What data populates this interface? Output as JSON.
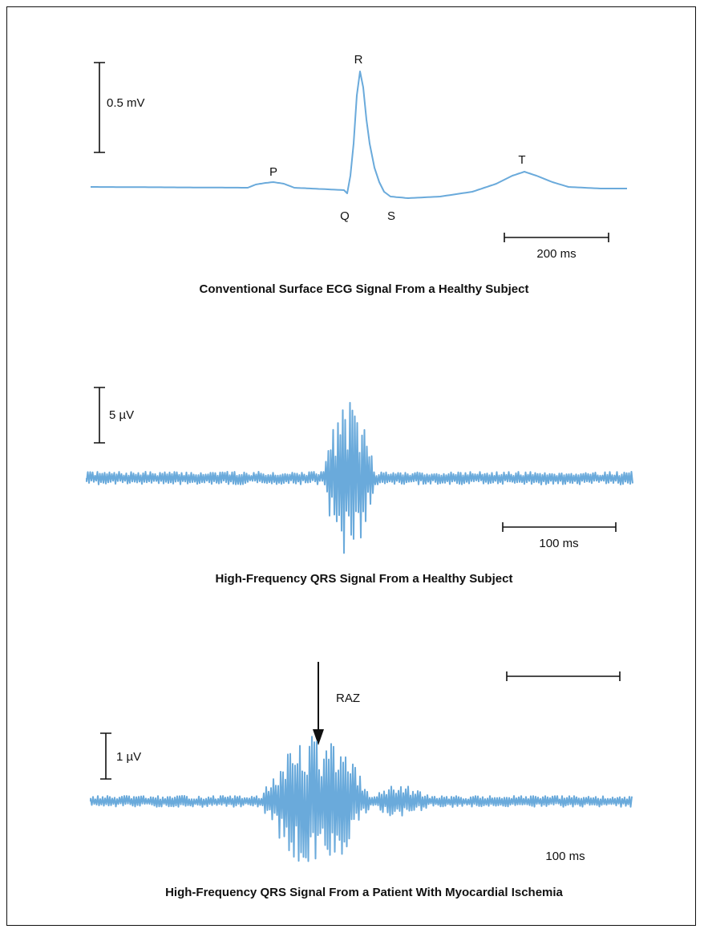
{
  "panels": [
    {
      "caption": "Conventional Surface ECG Signal From a Healthy Subject",
      "amplitude_scale": "0.5 mV",
      "time_scale": "200 ms",
      "waves": {
        "p": "P",
        "q": "Q",
        "r": "R",
        "s": "S",
        "t": "T"
      }
    },
    {
      "caption": "High-Frequency QRS Signal From a Healthy Subject",
      "amplitude_scale": "5 µV",
      "time_scale": "100 ms"
    },
    {
      "caption": "High-Frequency QRS Signal From a Patient With Myocardial Ischemia",
      "amplitude_scale": "1 µV",
      "time_scale": "100 ms",
      "annotation": "RAZ"
    }
  ],
  "colors": {
    "trace": "#6aaadb",
    "ink": "#111111"
  }
}
